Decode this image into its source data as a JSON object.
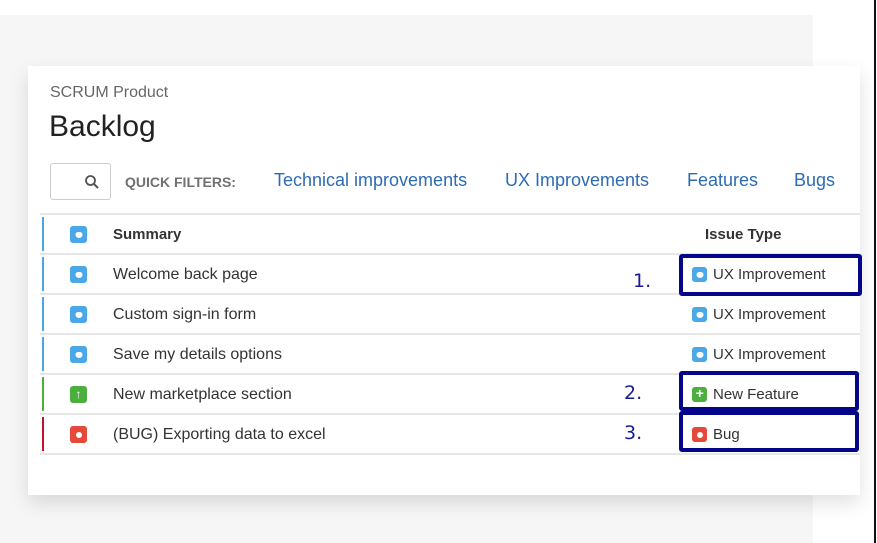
{
  "header": {
    "project": "SCRUM Product",
    "title": "Backlog"
  },
  "filters": {
    "label": "QUICK FILTERS:",
    "items": [
      "Technical improvements",
      "UX Improvements",
      "Features",
      "Bugs"
    ]
  },
  "table": {
    "columns": {
      "summary": "Summary",
      "issue_type": "Issue Type"
    },
    "rows": [
      {
        "summary": "Welcome back page",
        "type": "UX Improvement",
        "color": "#4aa8e8"
      },
      {
        "summary": "Custom sign-in form",
        "type": "UX Improvement",
        "color": "#4aa8e8"
      },
      {
        "summary": "Save my details options",
        "type": "UX Improvement",
        "color": "#4aa8e8"
      },
      {
        "summary": "New marketplace section",
        "type": "New Feature",
        "color": "#4cae3f"
      },
      {
        "summary": "(BUG) Exporting data to excel",
        "type": "Bug",
        "color": "#e5493a"
      }
    ]
  },
  "annotations": [
    "1.",
    "2.",
    "3."
  ],
  "colors": {
    "annotation": "#05058a",
    "link": "#2d6bb3"
  }
}
